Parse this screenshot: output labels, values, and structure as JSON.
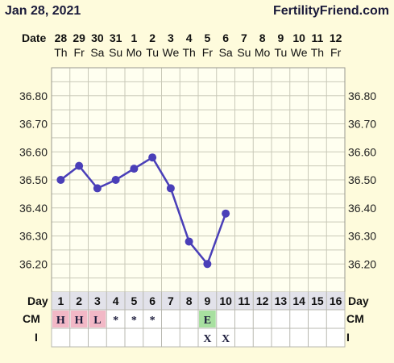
{
  "header": {
    "date": "Jan 28, 2021",
    "site": "FertilityFriend.com"
  },
  "labels": {
    "date_row": "Date",
    "day_row": "Day",
    "cm_row": "CM",
    "i_row": "I"
  },
  "dates": [
    "28",
    "29",
    "30",
    "31",
    "1",
    "2",
    "3",
    "4",
    "5",
    "6",
    "7",
    "8",
    "9",
    "10",
    "11",
    "12"
  ],
  "weekdays": [
    "Th",
    "Fr",
    "Sa",
    "Su",
    "Mo",
    "Tu",
    "We",
    "Th",
    "Fr",
    "Sa",
    "Su",
    "Mo",
    "Tu",
    "We",
    "Th",
    "Fr"
  ],
  "days": [
    "1",
    "2",
    "3",
    "4",
    "5",
    "6",
    "7",
    "8",
    "9",
    "10",
    "11",
    "12",
    "13",
    "14",
    "15",
    "16"
  ],
  "cm": [
    "H",
    "H",
    "L",
    "*",
    "*",
    "*",
    "",
    "",
    "E",
    "",
    "",
    "",
    "",
    "",
    "",
    ""
  ],
  "cm_colors": {
    "H": "#f2b8c6",
    "L": "#f2b8c6",
    "E": "#a8e0a0"
  },
  "intercourse": [
    "",
    "",
    "",
    "",
    "",
    "",
    "",
    "",
    "X",
    "X",
    "",
    "",
    "",
    "",
    "",
    ""
  ],
  "colors": {
    "line": "#4a3fb8",
    "background": "#fefbdc",
    "plot_background": "#fffff0"
  },
  "chart_data": {
    "type": "line",
    "title": "",
    "xlabel": "Day",
    "ylabel": "",
    "x": [
      1,
      2,
      3,
      4,
      5,
      6,
      7,
      8,
      9,
      10,
      11,
      12,
      13,
      14,
      15,
      16
    ],
    "ylim": [
      36.1,
      36.9
    ],
    "yticks": [
      "36.80",
      "36.70",
      "36.60",
      "36.50",
      "36.40",
      "36.30",
      "36.20"
    ],
    "series": [
      {
        "values": [
          36.5,
          36.55,
          36.47,
          36.5,
          36.54,
          36.58,
          36.47,
          36.28,
          36.2,
          36.38,
          null,
          null,
          null,
          null,
          null,
          null
        ]
      }
    ],
    "grid": true
  }
}
